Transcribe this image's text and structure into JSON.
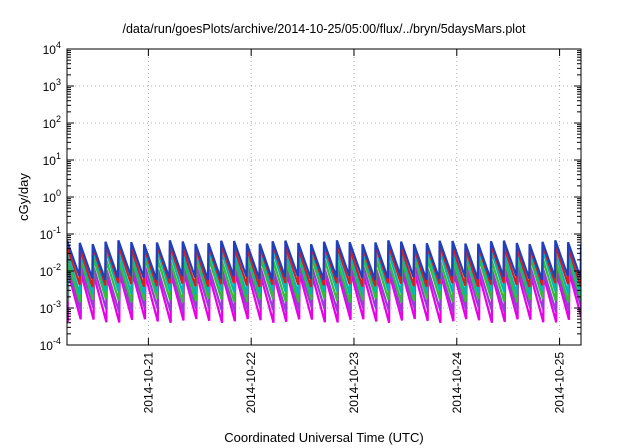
{
  "chart_data": {
    "type": "line",
    "title": "/data/run/goesPlots/archive/2014-10-25/05:00/flux/../bryn/5daysMars.plot",
    "xlabel": "Coordinated Universal Time (UTC)",
    "ylabel": "cGy/day",
    "yscale": "log",
    "ylim": [
      0.0001,
      10000
    ],
    "y_ticks": [
      {
        "base": "10",
        "exp": "-4",
        "value": 0.0001
      },
      {
        "base": "10",
        "exp": "-3",
        "value": 0.001
      },
      {
        "base": "10",
        "exp": "-2",
        "value": 0.01
      },
      {
        "base": "10",
        "exp": "-1",
        "value": 0.1
      },
      {
        "base": "10",
        "exp": "0",
        "value": 1
      },
      {
        "base": "10",
        "exp": "1",
        "value": 10
      },
      {
        "base": "10",
        "exp": "2",
        "value": 100
      },
      {
        "base": "10",
        "exp": "3",
        "value": 1000
      },
      {
        "base": "10",
        "exp": "4",
        "value": 10000
      }
    ],
    "xlim": [
      "2014-10-20T05:00",
      "2014-10-25T05:00"
    ],
    "x_ticks": [
      "2014-10-21",
      "2014-10-22",
      "2014-10-23",
      "2014-10-24",
      "2014-10-25"
    ],
    "grid": true,
    "cycle_hours": 3,
    "series": [
      {
        "color": "#1f3fbf",
        "peak": 0.06,
        "trough": 0.0065
      },
      {
        "color": "#d42020",
        "peak": 0.045,
        "trough": 0.0042
      },
      {
        "color": "#00b8b8",
        "peak": 0.032,
        "trough": 0.0026
      },
      {
        "color": "#2fbf2f",
        "peak": 0.02,
        "trough": 0.0016
      },
      {
        "color": "#9a3bd8",
        "peak": 0.012,
        "trough": 0.0009
      },
      {
        "color": "#e800e8",
        "peak": 0.008,
        "trough": 0.00045
      }
    ]
  }
}
